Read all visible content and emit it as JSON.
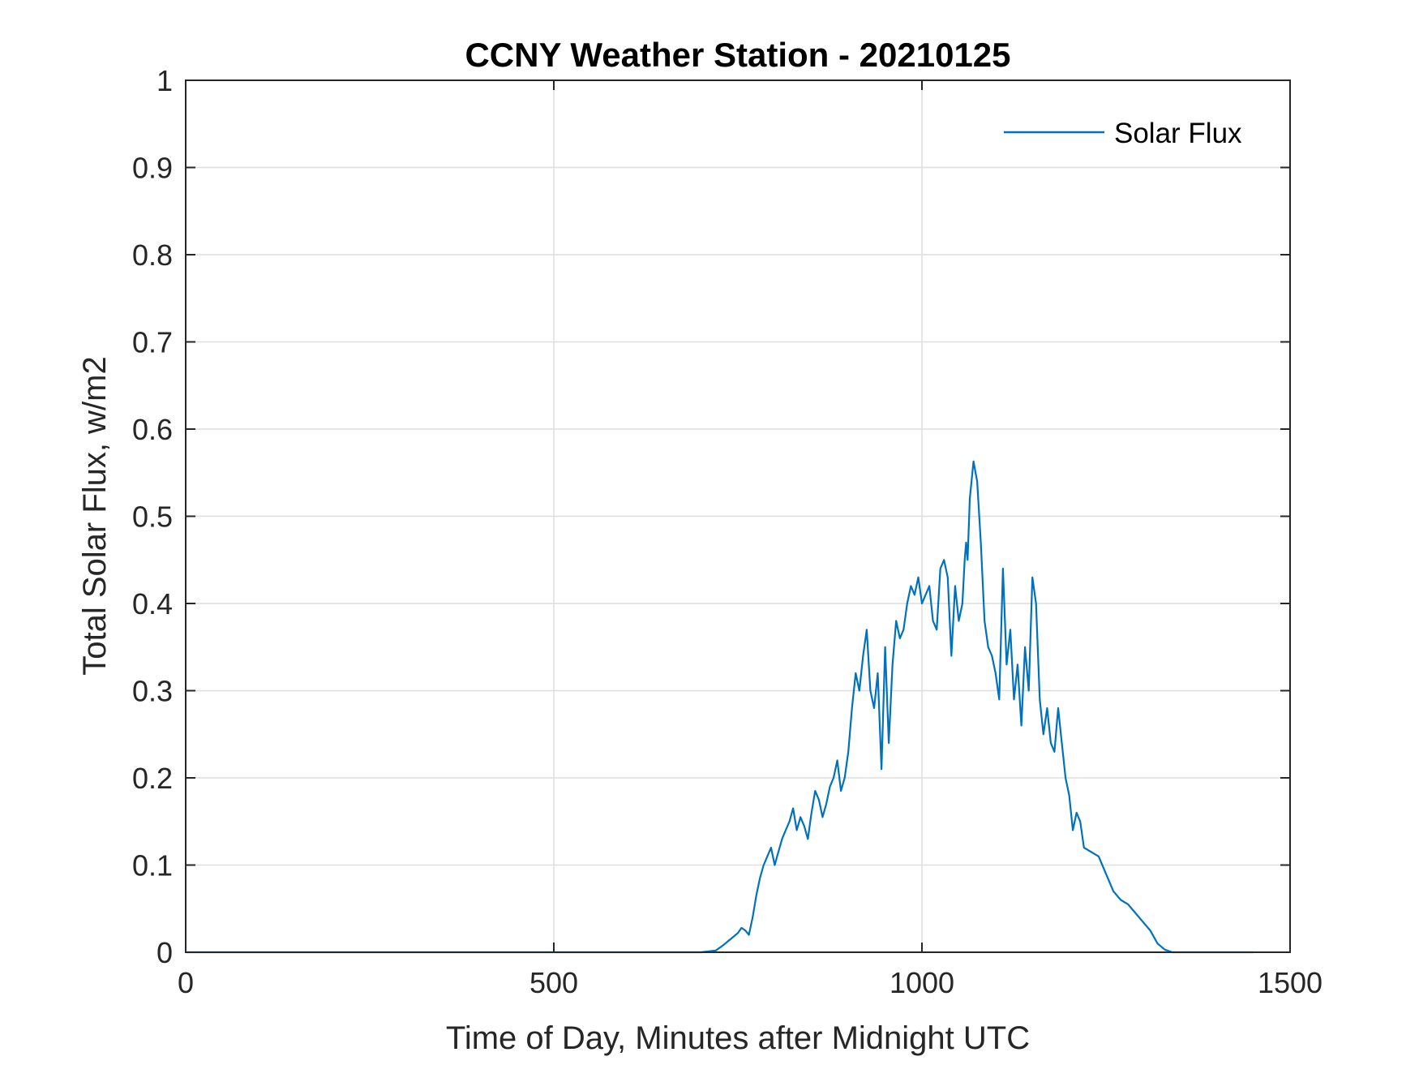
{
  "chart_data": {
    "type": "line",
    "title": "CCNY Weather Station - 20210125",
    "xlabel": "Time of Day, Minutes after Midnight UTC",
    "ylabel": "Total Solar Flux, w/m2",
    "xlim": [
      0,
      1500
    ],
    "ylim": [
      0,
      1
    ],
    "xticks": [
      0,
      500,
      1000,
      1500
    ],
    "xtick_labels": [
      "0",
      "500",
      "1000",
      "1500"
    ],
    "yticks": [
      0,
      0.1,
      0.2,
      0.3,
      0.4,
      0.5,
      0.6,
      0.7,
      0.8,
      0.9,
      1
    ],
    "ytick_labels": [
      "0",
      "0.1",
      "0.2",
      "0.3",
      "0.4",
      "0.5",
      "0.6",
      "0.7",
      "0.8",
      "0.9",
      "1"
    ],
    "grid": true,
    "legend_position": "top-right",
    "series_color": "#0072BD",
    "series": [
      {
        "name": "Solar Flux",
        "x": [
          0,
          100,
          200,
          300,
          400,
          500,
          600,
          700,
          720,
          730,
          740,
          750,
          755,
          760,
          765,
          770,
          775,
          780,
          785,
          790,
          795,
          800,
          805,
          810,
          815,
          820,
          825,
          830,
          835,
          840,
          845,
          850,
          855,
          860,
          865,
          870,
          875,
          880,
          885,
          890,
          895,
          900,
          905,
          910,
          915,
          920,
          925,
          930,
          935,
          940,
          945,
          950,
          955,
          960,
          965,
          970,
          975,
          980,
          985,
          990,
          995,
          1000,
          1005,
          1010,
          1015,
          1020,
          1025,
          1030,
          1035,
          1040,
          1045,
          1050,
          1055,
          1058,
          1060,
          1062,
          1065,
          1070,
          1075,
          1080,
          1085,
          1090,
          1095,
          1100,
          1105,
          1110,
          1115,
          1120,
          1125,
          1130,
          1135,
          1140,
          1145,
          1150,
          1155,
          1160,
          1165,
          1170,
          1175,
          1180,
          1185,
          1190,
          1195,
          1200,
          1205,
          1210,
          1215,
          1220,
          1230,
          1240,
          1250,
          1260,
          1270,
          1280,
          1290,
          1300,
          1310,
          1320,
          1330,
          1340,
          1350,
          1400,
          1450
        ],
        "values": [
          0,
          0,
          0,
          0,
          0,
          0,
          0,
          0,
          0.002,
          0.008,
          0.015,
          0.022,
          0.028,
          0.025,
          0.02,
          0.04,
          0.065,
          0.085,
          0.1,
          0.11,
          0.12,
          0.1,
          0.115,
          0.13,
          0.14,
          0.15,
          0.165,
          0.14,
          0.155,
          0.145,
          0.13,
          0.16,
          0.185,
          0.175,
          0.155,
          0.17,
          0.19,
          0.2,
          0.22,
          0.185,
          0.2,
          0.23,
          0.28,
          0.32,
          0.3,
          0.34,
          0.37,
          0.3,
          0.28,
          0.32,
          0.21,
          0.35,
          0.24,
          0.33,
          0.38,
          0.36,
          0.37,
          0.4,
          0.42,
          0.41,
          0.43,
          0.4,
          0.41,
          0.42,
          0.38,
          0.37,
          0.44,
          0.45,
          0.43,
          0.34,
          0.42,
          0.38,
          0.4,
          0.45,
          0.47,
          0.45,
          0.52,
          0.563,
          0.54,
          0.47,
          0.38,
          0.35,
          0.34,
          0.32,
          0.29,
          0.44,
          0.33,
          0.37,
          0.29,
          0.33,
          0.26,
          0.35,
          0.3,
          0.43,
          0.4,
          0.29,
          0.25,
          0.28,
          0.24,
          0.23,
          0.28,
          0.24,
          0.2,
          0.18,
          0.14,
          0.16,
          0.15,
          0.12,
          0.115,
          0.11,
          0.09,
          0.07,
          0.06,
          0.055,
          0.045,
          0.035,
          0.025,
          0.01,
          0.003,
          0,
          0,
          0,
          0
        ]
      }
    ]
  }
}
